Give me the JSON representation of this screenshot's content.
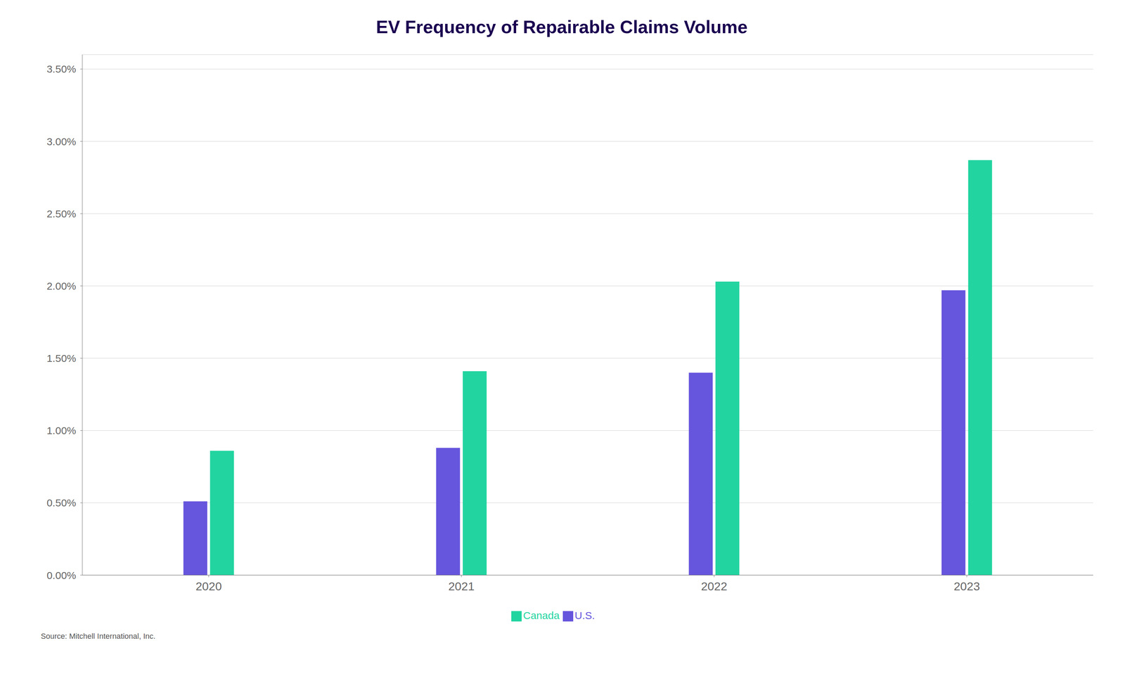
{
  "chart_data": {
    "type": "bar",
    "title": "EV Frequency of Repairable Claims Volume",
    "categories": [
      "2020",
      "2021",
      "2022",
      "2023"
    ],
    "series": [
      {
        "name": "U.S.",
        "color": "#6655dd",
        "values": [
          0.0051,
          0.0088,
          0.014,
          0.0197
        ]
      },
      {
        "name": "Canada",
        "color": "#22d4a0",
        "values": [
          0.0086,
          0.0141,
          0.0203,
          0.0287
        ]
      }
    ],
    "ylim": [
      0,
      0.036
    ],
    "yticks": [
      {
        "value": 0.0,
        "label": "0.00%"
      },
      {
        "value": 0.005,
        "label": "0.50%"
      },
      {
        "value": 0.01,
        "label": "1.00%"
      },
      {
        "value": 0.015,
        "label": "1.50%"
      },
      {
        "value": 0.02,
        "label": "2.00%"
      },
      {
        "value": 0.025,
        "label": "2.50%"
      },
      {
        "value": 0.03,
        "label": "3.00%"
      },
      {
        "value": 0.035,
        "label": "3.50%"
      }
    ],
    "grid": true,
    "legend": "bottom",
    "annotations": [
      "Source: Mitchell International, Inc."
    ]
  }
}
